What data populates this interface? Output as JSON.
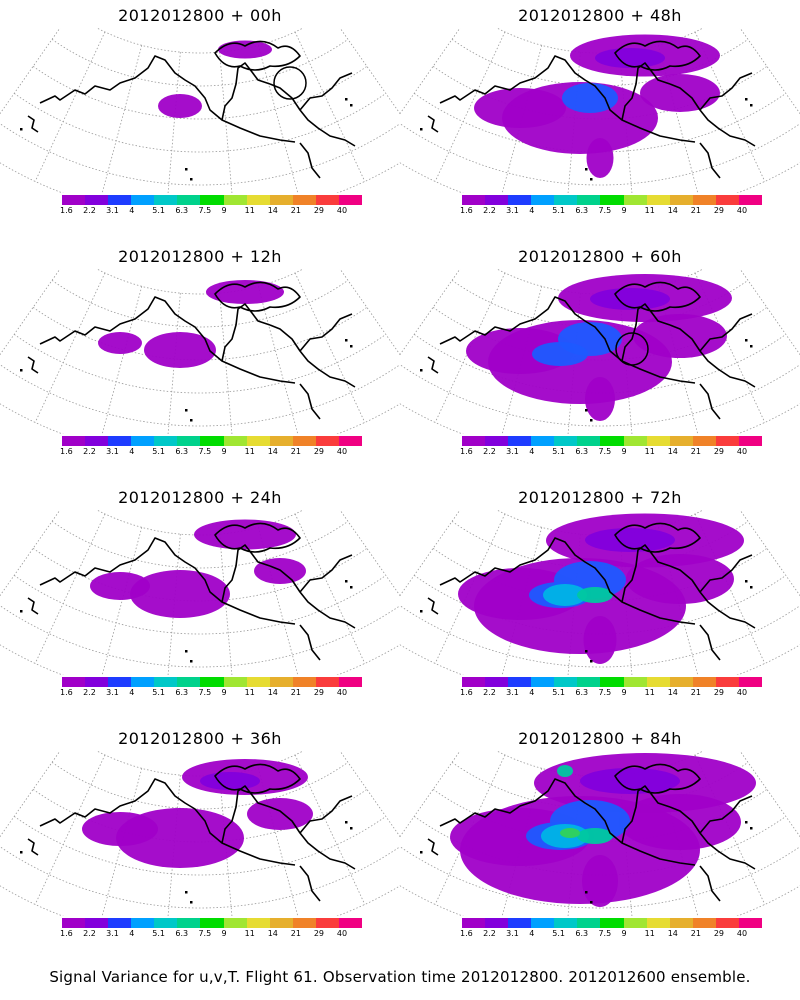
{
  "footer": "Signal Variance for u,v,T. Flight 61. Observation time 2012012800. 2012012600 ensemble.",
  "colorbar": {
    "labels": [
      "1.6",
      "2.2",
      "3.1",
      "4",
      "5.1",
      "6.3",
      "7.5",
      "9",
      "11",
      "14",
      "21",
      "29",
      "40"
    ],
    "colors": [
      "#a000c8",
      "#8200dc",
      "#1e3cff",
      "#00a0ff",
      "#00c8c8",
      "#00d28c",
      "#00dc00",
      "#a0e632",
      "#e6dc32",
      "#e6af2d",
      "#f08228",
      "#fa3c3c",
      "#f00082"
    ]
  },
  "panels": [
    {
      "title": "2012012800 + 00h",
      "level": 1,
      "circle": "top-right"
    },
    {
      "title": "2012012800 + 48h",
      "level": 5,
      "circle": null
    },
    {
      "title": "2012012800 + 12h",
      "level": 2,
      "circle": null
    },
    {
      "title": "2012012800 + 60h",
      "level": 6,
      "circle": "center"
    },
    {
      "title": "2012012800 + 24h",
      "level": 3,
      "circle": null
    },
    {
      "title": "2012012800 + 72h",
      "level": 7,
      "circle": null
    },
    {
      "title": "2012012800 + 36h",
      "level": 4,
      "circle": null
    },
    {
      "title": "2012012800 + 84h",
      "level": 8,
      "circle": null
    }
  ]
}
